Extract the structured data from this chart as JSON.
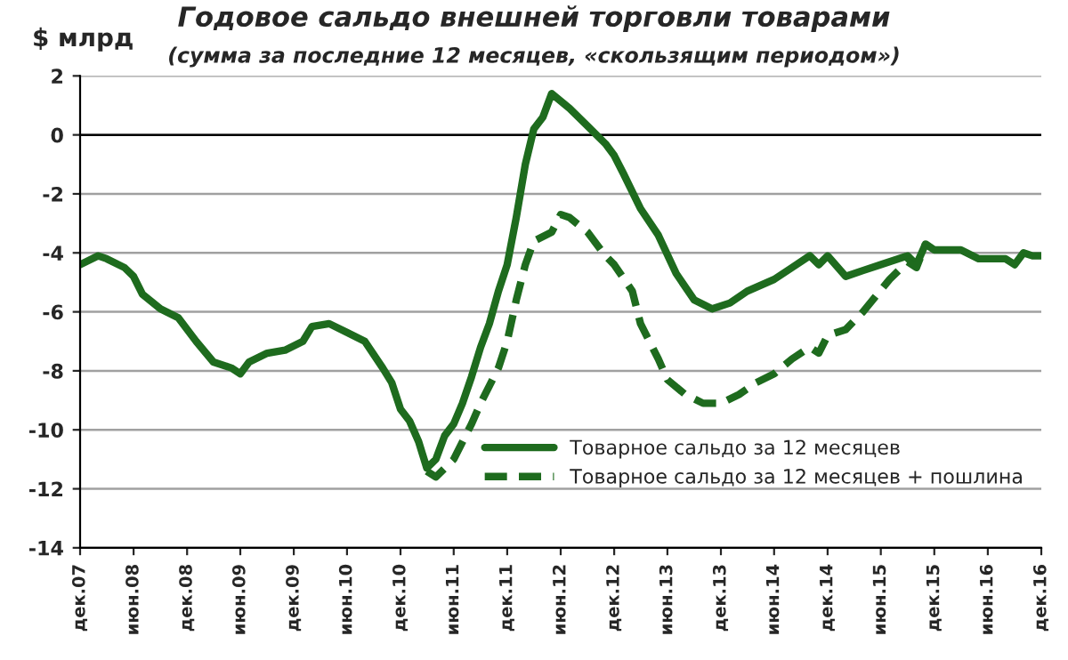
{
  "chart_data": {
    "type": "line",
    "title": "Годовое сальдо внешней торговли товарами",
    "subtitle": "(сумма за последние 12 месяцев, «скользящим периодом»)",
    "ylabel": "$ млрд",
    "series": [
      {
        "name": "Товарное сальдо за 12 месяцев",
        "color": "#1e6b1e",
        "line_style": "solid",
        "x": [
          "2007-12",
          "2008-02",
          "2008-03",
          "2008-05",
          "2008-06",
          "2008-07",
          "2008-09",
          "2008-11",
          "2009-01",
          "2009-03",
          "2009-05",
          "2009-06",
          "2009-07",
          "2009-09",
          "2009-11",
          "2010-01",
          "2010-02",
          "2010-04",
          "2010-06",
          "2010-08",
          "2010-10",
          "2010-11",
          "2010-12",
          "2011-01",
          "2011-02",
          "2011-03",
          "2011-04",
          "2011-05",
          "2011-06",
          "2011-07",
          "2011-08",
          "2011-09",
          "2011-10",
          "2011-11",
          "2011-12",
          "2012-01",
          "2012-02",
          "2012-03",
          "2012-04",
          "2012-05",
          "2012-07",
          "2012-09",
          "2012-11",
          "2012-12",
          "2013-01",
          "2013-03",
          "2013-05",
          "2013-07",
          "2013-09",
          "2013-11",
          "2014-01",
          "2014-03",
          "2014-06",
          "2014-08",
          "2014-10",
          "2014-11",
          "2014-12",
          "2015-02",
          "2015-04",
          "2015-06",
          "2015-09",
          "2015-10",
          "2015-11",
          "2015-12",
          "2016-03",
          "2016-05",
          "2016-08",
          "2016-09",
          "2016-10",
          "2016-11",
          "2016-12"
        ],
        "values": [
          -4.4,
          -4.1,
          -4.2,
          -4.5,
          -4.8,
          -5.4,
          -5.9,
          -6.2,
          -7.0,
          -7.7,
          -7.9,
          -8.1,
          -7.7,
          -7.4,
          -7.3,
          -7.0,
          -6.5,
          -6.4,
          -6.7,
          -7.0,
          -7.9,
          -8.4,
          -9.3,
          -9.7,
          -10.4,
          -11.3,
          -11.0,
          -10.2,
          -9.8,
          -9.1,
          -8.2,
          -7.2,
          -6.4,
          -5.3,
          -4.4,
          -2.8,
          -1.0,
          0.2,
          0.6,
          1.4,
          0.9,
          0.3,
          -0.3,
          -0.7,
          -1.3,
          -2.5,
          -3.4,
          -4.7,
          -5.6,
          -5.9,
          -5.7,
          -5.3,
          -4.9,
          -4.5,
          -4.1,
          -4.4,
          -4.1,
          -4.8,
          -4.6,
          -4.4,
          -4.1,
          -4.4,
          -3.7,
          -3.9,
          -3.9,
          -4.2,
          -4.2,
          -4.4,
          -4.0,
          -4.1,
          -4.1
        ]
      },
      {
        "name": "Товарное сальдо за 12 месяцев + пошлина",
        "color": "#1e6b1e",
        "line_style": "dashed",
        "x": [
          "2011-03",
          "2011-04",
          "2011-06",
          "2011-08",
          "2011-09",
          "2011-11",
          "2011-12",
          "2012-01",
          "2012-02",
          "2012-03",
          "2012-05",
          "2012-06",
          "2012-07",
          "2012-09",
          "2012-11",
          "2012-12",
          "2013-02",
          "2013-03",
          "2013-05",
          "2013-06",
          "2013-08",
          "2013-10",
          "2013-12",
          "2014-02",
          "2014-04",
          "2014-06",
          "2014-08",
          "2014-10",
          "2014-11",
          "2014-12",
          "2015-02",
          "2015-04",
          "2015-07",
          "2015-09",
          "2015-10",
          "2015-11"
        ],
        "values": [
          -11.4,
          -11.6,
          -11.0,
          -9.8,
          -9.1,
          -7.9,
          -7.0,
          -5.6,
          -4.4,
          -3.6,
          -3.3,
          -2.7,
          -2.8,
          -3.3,
          -4.1,
          -4.4,
          -5.3,
          -6.4,
          -7.6,
          -8.3,
          -8.8,
          -9.1,
          -9.1,
          -8.8,
          -8.4,
          -8.1,
          -7.6,
          -7.2,
          -7.4,
          -6.8,
          -6.6,
          -6.0,
          -4.9,
          -4.3,
          -4.5,
          -3.7
        ]
      }
    ],
    "xlim": [
      "2007-12",
      "2016-12"
    ],
    "xticks": [
      {
        "value": "2007-12",
        "label": "дек.07"
      },
      {
        "value": "2008-06",
        "label": "июн.08"
      },
      {
        "value": "2008-12",
        "label": "дек.08"
      },
      {
        "value": "2009-06",
        "label": "июн.09"
      },
      {
        "value": "2009-12",
        "label": "дек.09"
      },
      {
        "value": "2010-06",
        "label": "июн.10"
      },
      {
        "value": "2010-12",
        "label": "дек.10"
      },
      {
        "value": "2011-06",
        "label": "июн.11"
      },
      {
        "value": "2011-12",
        "label": "дек.11"
      },
      {
        "value": "2012-06",
        "label": "июн.12"
      },
      {
        "value": "2012-12",
        "label": "дек.12"
      },
      {
        "value": "2013-06",
        "label": "июн.13"
      },
      {
        "value": "2013-12",
        "label": "дек.13"
      },
      {
        "value": "2014-06",
        "label": "июн.14"
      },
      {
        "value": "2014-12",
        "label": "дек.14"
      },
      {
        "value": "2015-06",
        "label": "июн.15"
      },
      {
        "value": "2015-12",
        "label": "дек.15"
      },
      {
        "value": "2016-06",
        "label": "июн.16"
      },
      {
        "value": "2016-12",
        "label": "дек.16"
      }
    ],
    "ylim": [
      -14,
      2
    ],
    "yticks": [
      -14,
      -12,
      -10,
      -8,
      -6,
      -4,
      -2,
      0,
      2
    ],
    "ref_lines": [
      {
        "axis": "y",
        "value": 0,
        "label": null,
        "color": "#000000"
      }
    ],
    "grid": "y",
    "legend": "bottom right"
  }
}
